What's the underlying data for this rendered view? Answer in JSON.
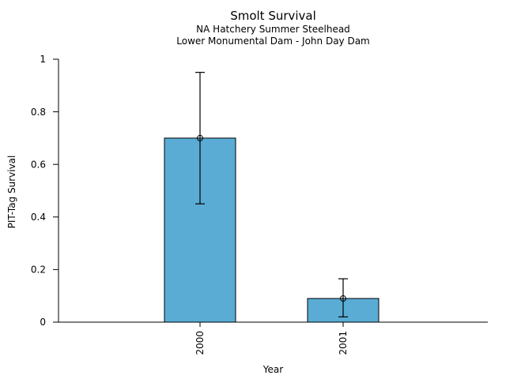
{
  "chart_data": {
    "type": "bar",
    "title": "Smolt Survival",
    "subtitle_line1": "NA Hatchery Summer Steelhead",
    "subtitle_line2": "Lower Monumental Dam - John Day Dam",
    "xlabel": "Year",
    "ylabel": "PIT-Tag Survival",
    "categories": [
      "2000",
      "2001"
    ],
    "values": [
      0.7,
      0.09
    ],
    "error_low": [
      0.45,
      0.02
    ],
    "error_high": [
      0.95,
      0.165
    ],
    "ylim": [
      0,
      1
    ],
    "yticks": [
      0,
      0.2,
      0.4,
      0.6,
      0.8,
      1
    ],
    "ytick_labels": [
      "0",
      "0.2",
      "0.4",
      "0.6",
      "0.8",
      "1"
    ],
    "marker": "open-circle",
    "grid": false,
    "legend": null,
    "colors": {
      "bar_fill": "#5AACD5",
      "bar_edge": "#000000",
      "error_bar": "#000000",
      "axis": "#000000",
      "text": "#000000",
      "background": "#FFFFFF"
    }
  }
}
